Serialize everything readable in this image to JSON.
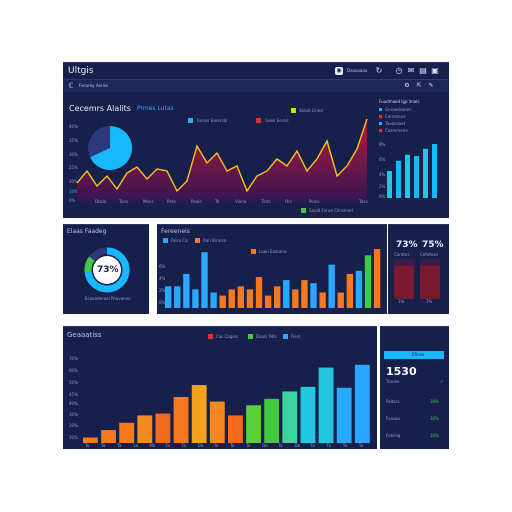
{
  "app": {
    "title": "Ultgis",
    "search_label": "Fesaray Aeriss",
    "user_label": "Daaaaaaa"
  },
  "top_panel": {
    "title": "Cecemrs Alalits",
    "highlight": "Prmes Lutas",
    "legend": [
      "Fasser Eerersal",
      "Geek Eerssl",
      "Stoub Lined"
    ],
    "bottom_legend": "Sauld Fnrue Clinsmed",
    "y_ticks": [
      "40%",
      "35%",
      "30%",
      "25%",
      "20%",
      "10%",
      "0%"
    ],
    "x_ticks": [
      "Dbsla",
      "Tuns",
      "Mens",
      "Peta",
      "Pooie",
      "Ta",
      "Viona",
      "Tints",
      "Ors",
      "Poins",
      "Taxs"
    ],
    "pie": {
      "share": 0.68
    },
    "side_title": "Fuudmaed lgp lmals",
    "side_rows": [
      "Gnroedsaeen",
      "Cernmane",
      "Tavonsaet",
      "Cosmmerie"
    ],
    "side_ticks": [
      "9%",
      "6%",
      "4%",
      "2%",
      "0%"
    ],
    "side_bars": [
      0.45,
      0.62,
      0.72,
      0.7,
      0.82,
      0.9
    ]
  },
  "mid_panel": {
    "donut_title": "Elaas Faadeg",
    "donut_value": "73%",
    "donut_share": 0.73,
    "donut_caption": "Ecaeaderaoi Pnavanns",
    "bars_title": "Fereeneis",
    "bars_legend": [
      "Falsa Ca",
      "Aan Birarsa"
    ],
    "bars_sub_legend": "Laan Eaaunns",
    "y_ticks": [
      "6%",
      "4%",
      "2%",
      "0%"
    ],
    "bars": [
      {
        "v": 0.35,
        "c": "#2aa8ff"
      },
      {
        "v": 0.35,
        "c": "#2aa8ff"
      },
      {
        "v": 0.55,
        "c": "#2aa8ff"
      },
      {
        "v": 0.3,
        "c": "#2aa8ff"
      },
      {
        "v": 0.9,
        "c": "#2aa8ff"
      },
      {
        "v": 0.25,
        "c": "#2aa8ff"
      },
      {
        "v": 0.2,
        "c": "#f5791f"
      },
      {
        "v": 0.3,
        "c": "#f5791f"
      },
      {
        "v": 0.35,
        "c": "#f5791f"
      },
      {
        "v": 0.3,
        "c": "#f5791f"
      },
      {
        "v": 0.5,
        "c": "#f5791f"
      },
      {
        "v": 0.2,
        "c": "#f5791f"
      },
      {
        "v": 0.35,
        "c": "#f5791f"
      },
      {
        "v": 0.45,
        "c": "#2aa8ff"
      },
      {
        "v": 0.3,
        "c": "#f5791f"
      },
      {
        "v": 0.45,
        "c": "#f5791f"
      },
      {
        "v": 0.4,
        "c": "#2aa8ff"
      },
      {
        "v": 0.25,
        "c": "#f5791f"
      },
      {
        "v": 0.7,
        "c": "#2aa8ff"
      },
      {
        "v": 0.25,
        "c": "#f5791f"
      },
      {
        "v": 0.55,
        "c": "#f5791f"
      },
      {
        "v": 0.6,
        "c": "#2aa8ff"
      },
      {
        "v": 0.85,
        "c": "#43c843"
      },
      {
        "v": 0.95,
        "c": "#f5791f"
      }
    ],
    "kpi_values": [
      "73%",
      "75%"
    ],
    "kpi_labels": [
      "Cantars",
      "Cefotean"
    ],
    "kpi_fills": [
      0.42,
      0.42
    ],
    "kpi_footers": [
      "1%",
      "1%"
    ]
  },
  "bottom_panel": {
    "title": "Geaaatiss",
    "legend": [
      "Cas Cagins",
      "Daals Pdls",
      "Fiers"
    ],
    "y_ticks": [
      "70%",
      "60%",
      "50%",
      "45%",
      "40%",
      "30%",
      "20%",
      "10%"
    ],
    "x_ticks": [
      "Tu",
      "Ta",
      "Ta",
      "La",
      "Ma",
      "Ta",
      "Ta",
      "Da",
      "Ta",
      "Ta",
      "Ta",
      "Da",
      "Ta",
      "Da",
      "Ta",
      "Ta",
      "Ta",
      "Ta"
    ],
    "bars": [
      {
        "v": 0.06,
        "c": "#f5791f"
      },
      {
        "v": 0.14,
        "c": "#f5791f"
      },
      {
        "v": 0.22,
        "c": "#f5791f"
      },
      {
        "v": 0.3,
        "c": "#f58a1f"
      },
      {
        "v": 0.32,
        "c": "#f56a1f"
      },
      {
        "v": 0.5,
        "c": "#f5791f"
      },
      {
        "v": 0.63,
        "c": "#f5a21f"
      },
      {
        "v": 0.45,
        "c": "#f5891f"
      },
      {
        "v": 0.3,
        "c": "#f56a1f"
      },
      {
        "v": 0.41,
        "c": "#5ccd3d"
      },
      {
        "v": 0.48,
        "c": "#43c843"
      },
      {
        "v": 0.56,
        "c": "#3cd4a0"
      },
      {
        "v": 0.61,
        "c": "#23c8e0"
      },
      {
        "v": 0.82,
        "c": "#23c8e0"
      },
      {
        "v": 0.6,
        "c": "#2aa8ff"
      },
      {
        "v": 0.85,
        "c": "#2aa8ff"
      }
    ],
    "kpi_header": "Efinea",
    "kpi_value": "1530",
    "kpi_sub": "Trauee",
    "kpi_rows": [
      {
        "label": "Paltsra",
        "value": "30%"
      },
      {
        "label": "Fsasaa",
        "value": "30%"
      },
      {
        "label": "Fotsnig",
        "value": "30%"
      }
    ]
  },
  "colors": {
    "panel": "#16204a",
    "accent_blue": "#2aa8ff",
    "accent_orange": "#f5791f",
    "accent_green": "#43c843",
    "area_fill": "#8a1838",
    "line": "#f5c21f",
    "kpi_red": "#7a1830"
  }
}
